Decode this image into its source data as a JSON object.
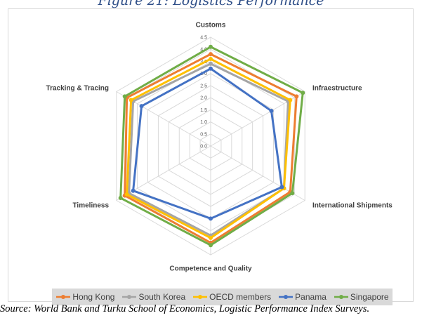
{
  "figure_title": "Figure 21: Logistics Performance",
  "source_text": "Source: World Bank and Turku School of Economics, Logistic Performance Index Surveys.",
  "chart_data": {
    "type": "radar",
    "axes": [
      "Customs",
      "Infraestructure",
      "International Shipments",
      "Competence and Quality",
      "Timeliness",
      "Tracking & Tracing"
    ],
    "rlim": [
      0,
      4.5
    ],
    "ticks": [
      "0.0",
      "0.5",
      "1.0",
      "1.5",
      "2.0",
      "2.5",
      "3.0",
      "3.5",
      "4.0",
      "4.5"
    ],
    "series": [
      {
        "name": "Hong Kong",
        "color": "#ed7d31",
        "values": [
          3.8,
          4.1,
          3.8,
          4.0,
          4.1,
          4.0
        ]
      },
      {
        "name": "South Korea",
        "color": "#a5a5a5",
        "values": [
          3.4,
          3.7,
          3.5,
          3.7,
          3.9,
          3.7
        ]
      },
      {
        "name": "OECD members",
        "color": "#ffc000",
        "values": [
          3.6,
          3.8,
          3.5,
          3.8,
          4.0,
          3.8
        ]
      },
      {
        "name": "Panama",
        "color": "#4472c4",
        "values": [
          3.2,
          2.9,
          3.4,
          3.0,
          3.7,
          3.3
        ]
      },
      {
        "name": "Singapore",
        "color": "#70ad47",
        "values": [
          4.1,
          4.4,
          3.9,
          4.1,
          4.3,
          4.1
        ]
      }
    ],
    "grid": true,
    "legend_position": "bottom"
  }
}
